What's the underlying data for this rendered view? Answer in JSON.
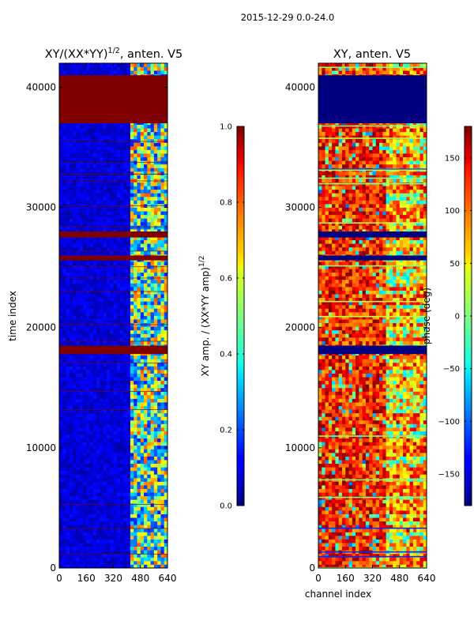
{
  "figure": {
    "suptitle": "2015-12-29 0.0-24.0"
  },
  "chart_data": [
    {
      "type": "heatmap",
      "title": "XY/(XX*YY)^(1/2), anten. V5",
      "title_main": "XY/(XX*YY)",
      "title_exp": "1/2",
      "title_tail": ", anten. V5",
      "xlabel": "",
      "ylabel": "time index",
      "xlim": [
        0,
        640
      ],
      "ylim": [
        0,
        42000
      ],
      "xticks": [
        0,
        160,
        320,
        480,
        640
      ],
      "yticks": [
        0,
        10000,
        20000,
        30000,
        40000
      ],
      "colormap": "jet",
      "colorbar": {
        "label": "XY amp. / (XX*YY amp)^(1/2)",
        "label_main": "XY amp. / (XX*YY amp)",
        "label_exp": "1/2",
        "range": [
          0.0,
          1.0
        ],
        "ticks": [
          0.0,
          0.2,
          0.4,
          0.6,
          0.8,
          1.0
        ],
        "tick_labels": [
          "0.0",
          "0.2",
          "0.4",
          "0.6",
          "0.8",
          "1.0"
        ]
      },
      "background_value": 0.08,
      "flagged_time_bands": [
        [
          37000,
          41000
        ],
        [
          27500,
          28000
        ],
        [
          25600,
          26000
        ],
        [
          17800,
          18500
        ]
      ],
      "bright_channel_range": [
        420,
        640
      ]
    },
    {
      "type": "heatmap",
      "title": "XY, anten. V5",
      "xlabel": "channel index",
      "ylabel": "",
      "xlim": [
        0,
        640
      ],
      "ylim": [
        0,
        42000
      ],
      "xticks": [
        0,
        160,
        320,
        480,
        640
      ],
      "yticks": [
        0,
        10000,
        20000,
        30000,
        40000
      ],
      "colormap": "jet",
      "colorbar": {
        "label": "phase (deg)",
        "range": [
          -180,
          180
        ],
        "ticks": [
          -150,
          -100,
          -50,
          0,
          50,
          100,
          150
        ],
        "tick_labels": [
          "−150",
          "−100",
          "−50",
          "0",
          "50",
          "100",
          "150"
        ]
      },
      "background_value": 140,
      "flagged_time_bands": [
        [
          37000,
          41000
        ],
        [
          27500,
          28000
        ],
        [
          25600,
          26000
        ],
        [
          17800,
          18500
        ]
      ],
      "bright_channel_range": [
        400,
        640
      ]
    }
  ]
}
